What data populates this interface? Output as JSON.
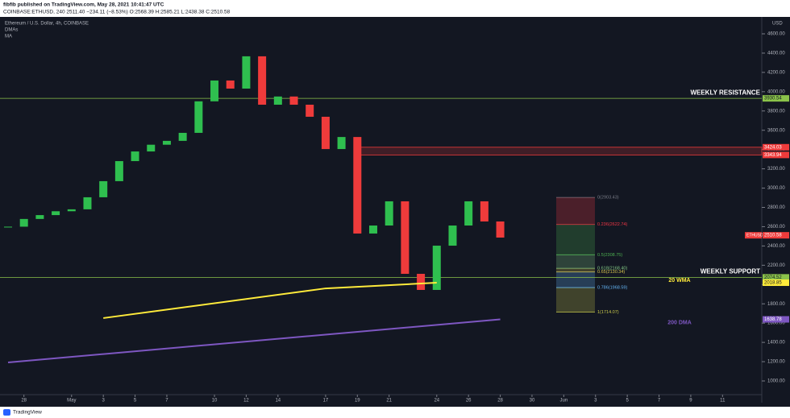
{
  "header": {
    "publisher": "fibfib published on TradingView.com, May 28, 2021 10:41:47 UTC",
    "ticker": "COINBASE:ETHUSD, 240  2511.40 −234.11 (−8.53%)  O:2568.39  H:2585.21  L:2438.38  C:2510.58"
  },
  "footer": {
    "brand": "TradingView"
  },
  "chart_data": {
    "type": "candlestick",
    "legend": [
      "Ethereum / U.S. Dollar, 4h, COINBASE",
      "DMAs",
      "MA"
    ],
    "currency": "USD",
    "up_color": "#2fbf4f",
    "down_color": "#ef3b3b",
    "x": [
      "2021-04-27",
      "2021-04-28",
      "2021-04-29",
      "2021-04-30",
      "2021-05-01",
      "2021-05-02",
      "2021-05-03",
      "2021-05-04",
      "2021-05-05",
      "2021-05-06",
      "2021-05-07",
      "2021-05-08",
      "2021-05-09",
      "2021-05-10",
      "2021-05-11",
      "2021-05-12",
      "2021-05-13",
      "2021-05-14",
      "2021-05-15",
      "2021-05-16",
      "2021-05-17",
      "2021-05-18",
      "2021-05-19",
      "2021-05-20",
      "2021-05-21",
      "2021-05-22",
      "2021-05-23",
      "2021-05-24",
      "2021-05-25",
      "2021-05-26",
      "2021-05-27",
      "2021-05-28"
    ],
    "values": [
      2600,
      2680,
      2720,
      2760,
      2780,
      2905,
      3072,
      3280,
      3380,
      3450,
      3490,
      3573,
      3900,
      4116,
      4032,
      4367,
      3865,
      3950,
      3865,
      3740,
      3405,
      3530,
      2529,
      2612,
      2863,
      2111,
      1944,
      2403,
      2612,
      2863,
      2654,
      2487
    ],
    "xlim": [
      "2021-04-27",
      "2021-06-12"
    ],
    "xticks": [
      {
        "value": "2021-04-28",
        "label": "28"
      },
      {
        "value": "2021-05-01",
        "label": "May"
      },
      {
        "value": "2021-05-03",
        "label": "3"
      },
      {
        "value": "2021-05-05",
        "label": "5"
      },
      {
        "value": "2021-05-07",
        "label": "7"
      },
      {
        "value": "2021-05-10",
        "label": "10"
      },
      {
        "value": "2021-05-12",
        "label": "12"
      },
      {
        "value": "2021-05-14",
        "label": "14"
      },
      {
        "value": "2021-05-17",
        "label": "17"
      },
      {
        "value": "2021-05-19",
        "label": "19"
      },
      {
        "value": "2021-05-21",
        "label": "21"
      },
      {
        "value": "2021-05-24",
        "label": "24"
      },
      {
        "value": "2021-05-26",
        "label": "26"
      },
      {
        "value": "2021-05-28",
        "label": "28"
      },
      {
        "value": "2021-05-30",
        "label": "30"
      },
      {
        "value": "2021-06-01",
        "label": "Jun"
      },
      {
        "value": "2021-06-03",
        "label": "3"
      },
      {
        "value": "2021-06-05",
        "label": "5"
      },
      {
        "value": "2021-06-07",
        "label": "7"
      },
      {
        "value": "2021-06-09",
        "label": "9"
      },
      {
        "value": "2021-06-11",
        "label": "11"
      }
    ],
    "ylim": [
      858,
      4717
    ],
    "yticks": [
      {
        "value": 1000,
        "label": "1000.00"
      },
      {
        "value": 1200,
        "label": "1200.00"
      },
      {
        "value": 1400,
        "label": "1400.00"
      },
      {
        "value": 1600,
        "label": "1600.00"
      },
      {
        "value": 1800,
        "label": "1800.00"
      },
      {
        "value": 2000,
        "label": "2000.00"
      },
      {
        "value": 2200,
        "label": "2200.00"
      },
      {
        "value": 2400,
        "label": "2400.00"
      },
      {
        "value": 2600,
        "label": "2600.00"
      },
      {
        "value": 2800,
        "label": "2800.00"
      },
      {
        "value": 3000,
        "label": "3000.00"
      },
      {
        "value": 3200,
        "label": "3200.00"
      },
      {
        "value": 3400,
        "label": "3400.00"
      },
      {
        "value": 3600,
        "label": "3600.00"
      },
      {
        "value": 3800,
        "label": "3800.00"
      },
      {
        "value": 4000,
        "label": "4000.00"
      },
      {
        "value": 4200,
        "label": "4200.00"
      },
      {
        "value": 4400,
        "label": "4400.00"
      },
      {
        "value": 4600,
        "label": "4600.00"
      }
    ],
    "last_price": {
      "name": "ETHUSD",
      "value": 2510.58,
      "color": "#ef3b3b"
    },
    "levels": [
      {
        "name": "WEEKLY RESISTANCE",
        "value": 3930.54,
        "color": "#8bc34a"
      },
      {
        "name": "WEEKLY SUPPORT",
        "value": 2074.52,
        "color": "#8bc34a"
      }
    ],
    "zone": {
      "values": [
        3424.03,
        3343.94
      ],
      "color": "#ef3b3b"
    },
    "lines": [
      {
        "name": "20 WMA",
        "color": "#ffeb3b",
        "x": [
          "2021-05-03",
          "2021-05-17",
          "2021-05-24"
        ],
        "values": [
          1652,
          1960,
          2018.85
        ]
      },
      {
        "name": "200 DMA",
        "color": "#7e57c2",
        "x": [
          "2021-04-27",
          "2021-05-28"
        ],
        "values": [
          1192,
          1638.78
        ]
      }
    ],
    "fib": {
      "levels": [
        0,
        0.236,
        0.5,
        0.618,
        0.65,
        0.786,
        1
      ],
      "values": [
        2903.43,
        2622.74,
        2308.75,
        2168.4,
        2130.34,
        1968.59,
        1714.07
      ],
      "value_labels": [
        "0(2903.43)",
        "0.236(2622.74)",
        "0.5(2308.75)",
        "0.618(2168.40)",
        "0.65(2130.34)",
        "0.786(1968.59)",
        "1(1714.07)"
      ],
      "colors": [
        "#787b86",
        "#f23645",
        "#4caf50",
        "#81c784",
        "#d4c24c",
        "#64b5f6",
        "#c8c84a"
      ]
    }
  }
}
